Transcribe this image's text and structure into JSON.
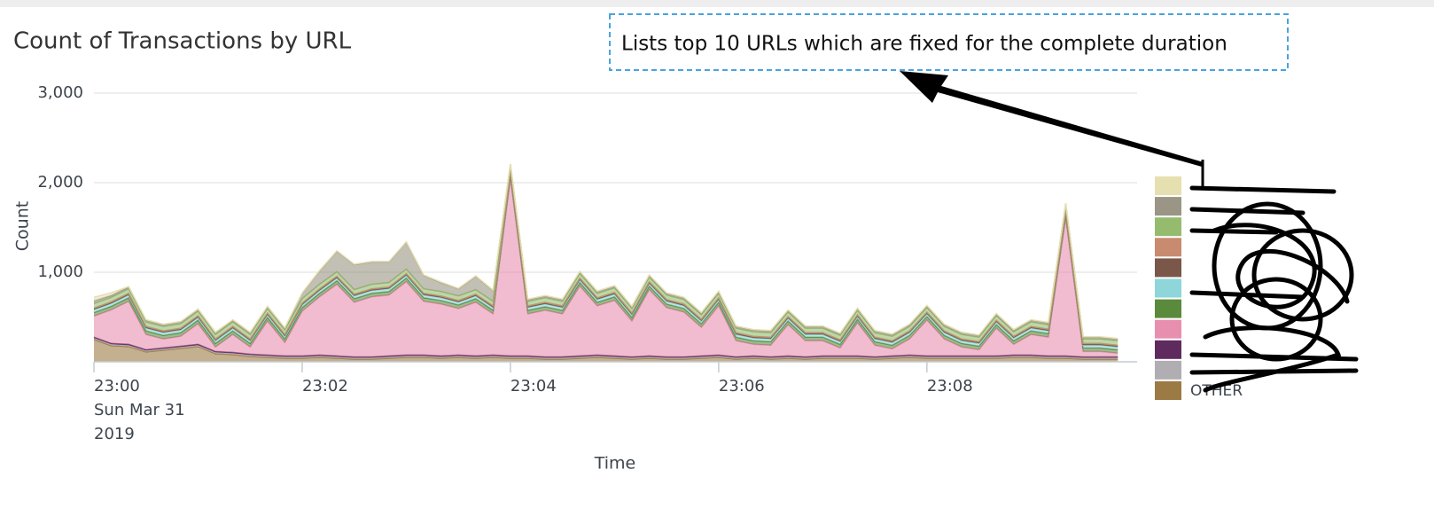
{
  "chart_data": {
    "type": "stacked-area",
    "title": "Count of Transactions by URL",
    "annotation": "Lists top 10 URLs which are fixed for the complete duration",
    "x_label": "Time",
    "y_label": "Count",
    "date_label": [
      "Sun Mar 31",
      "2019"
    ],
    "categories": [
      "23:00",
      null,
      null,
      null,
      null,
      null,
      null,
      null,
      null,
      null,
      null,
      null,
      "23:02",
      null,
      null,
      null,
      null,
      null,
      null,
      null,
      null,
      null,
      null,
      null,
      "23:04",
      null,
      null,
      null,
      null,
      null,
      null,
      null,
      null,
      null,
      null,
      null,
      "23:06",
      null,
      null,
      null,
      null,
      null,
      null,
      null,
      null,
      null,
      null,
      null,
      "23:08",
      null,
      null,
      null,
      null,
      null,
      null,
      null,
      null,
      null,
      null,
      null
    ],
    "ylim": [
      0,
      3000
    ],
    "yticks": [
      {
        "value": 1000,
        "label": "1,000"
      },
      {
        "value": 2000,
        "label": "2,000"
      },
      {
        "value": 3000,
        "label": "3,000"
      }
    ],
    "grid": true,
    "legend": "right",
    "series": [
      {
        "name": null,
        "color": "#e6dfb0",
        "values": [
          40,
          30,
          5,
          5,
          5,
          5,
          5,
          5,
          5,
          5,
          5,
          5,
          5,
          5,
          5,
          5,
          5,
          5,
          5,
          5,
          5,
          5,
          5,
          5,
          5,
          5,
          5,
          5,
          5,
          5,
          5,
          5,
          5,
          5,
          5,
          5,
          5,
          5,
          5,
          5,
          5,
          5,
          5,
          5,
          5,
          5,
          5,
          5,
          5,
          5,
          5,
          5,
          5,
          5,
          5,
          5,
          5,
          5,
          5,
          5
        ]
      },
      {
        "name": null,
        "color": "#9a9584",
        "values": [
          30,
          20,
          20,
          20,
          20,
          20,
          20,
          20,
          20,
          20,
          20,
          20,
          60,
          150,
          230,
          280,
          250,
          230,
          300,
          150,
          100,
          80,
          150,
          120,
          20,
          20,
          20,
          20,
          20,
          20,
          20,
          20,
          20,
          20,
          20,
          20,
          20,
          20,
          20,
          20,
          20,
          20,
          20,
          20,
          20,
          20,
          20,
          20,
          20,
          20,
          20,
          20,
          20,
          20,
          20,
          20,
          20,
          20,
          20,
          20
        ]
      },
      {
        "name": null,
        "color": "#95bb6f",
        "values": [
          50,
          50,
          50,
          50,
          50,
          50,
          50,
          50,
          50,
          50,
          50,
          50,
          50,
          50,
          50,
          50,
          50,
          50,
          50,
          50,
          50,
          50,
          50,
          50,
          50,
          50,
          50,
          50,
          50,
          50,
          50,
          50,
          50,
          50,
          50,
          50,
          50,
          50,
          50,
          50,
          50,
          50,
          50,
          50,
          50,
          50,
          50,
          50,
          50,
          50,
          50,
          50,
          50,
          50,
          50,
          50,
          50,
          50,
          50,
          50
        ]
      },
      {
        "name": null,
        "color": "#c88b6f",
        "values": [
          10,
          10,
          10,
          10,
          10,
          10,
          10,
          10,
          10,
          10,
          10,
          10,
          10,
          10,
          10,
          10,
          10,
          10,
          10,
          10,
          10,
          10,
          10,
          10,
          10,
          10,
          10,
          10,
          10,
          10,
          10,
          10,
          10,
          10,
          10,
          10,
          10,
          10,
          10,
          10,
          10,
          10,
          10,
          10,
          10,
          10,
          10,
          10,
          10,
          10,
          10,
          10,
          10,
          10,
          10,
          10,
          10,
          10,
          10,
          10
        ]
      },
      {
        "name": null,
        "color": "#7a5748",
        "values": [
          10,
          10,
          10,
          10,
          10,
          10,
          10,
          10,
          10,
          10,
          10,
          10,
          10,
          10,
          10,
          10,
          10,
          10,
          10,
          10,
          10,
          10,
          10,
          10,
          10,
          10,
          10,
          10,
          10,
          10,
          10,
          10,
          10,
          10,
          10,
          10,
          10,
          10,
          10,
          10,
          10,
          10,
          10,
          10,
          10,
          10,
          10,
          10,
          10,
          10,
          10,
          10,
          10,
          10,
          10,
          10,
          10,
          10,
          10,
          10
        ]
      },
      {
        "name": null,
        "color": "#8ed6da",
        "values": [
          30,
          30,
          30,
          30,
          30,
          30,
          30,
          30,
          30,
          30,
          30,
          30,
          30,
          30,
          30,
          30,
          30,
          30,
          30,
          30,
          30,
          30,
          30,
          30,
          30,
          30,
          30,
          30,
          30,
          30,
          30,
          30,
          30,
          30,
          30,
          30,
          30,
          30,
          30,
          30,
          30,
          30,
          30,
          30,
          30,
          30,
          30,
          30,
          30,
          30,
          30,
          30,
          30,
          30,
          30,
          30,
          30,
          30,
          30,
          30
        ]
      },
      {
        "name": null,
        "color": "#5a8a3c",
        "values": [
          40,
          40,
          40,
          40,
          40,
          40,
          40,
          40,
          40,
          40,
          40,
          40,
          40,
          40,
          40,
          40,
          40,
          40,
          40,
          40,
          40,
          40,
          40,
          40,
          40,
          40,
          40,
          40,
          40,
          40,
          40,
          40,
          40,
          40,
          40,
          40,
          40,
          40,
          40,
          40,
          40,
          40,
          40,
          40,
          40,
          40,
          40,
          40,
          40,
          40,
          40,
          40,
          40,
          40,
          40,
          40,
          40,
          40,
          40,
          40
        ]
      },
      {
        "name": null,
        "color": "#e88fb0",
        "values": [
          235,
          375,
          480,
          170,
          100,
          110,
          230,
          50,
          200,
          80,
          380,
          150,
          500,
          650,
          800,
          610,
          670,
          680,
          820,
          600,
          580,
          520,
          600,
          460,
          1980,
          470,
          520,
          480,
          780,
          550,
          620,
          400,
          740,
          550,
          500,
          320,
          550,
          180,
          130,
          130,
          350,
          180,
          170,
          90,
          370,
          130,
          80,
          180,
          400,
          190,
          100,
          70,
          310,
          120,
          230,
          210,
          1540,
          60,
          60,
          40
        ]
      },
      {
        "name": null,
        "color": "#5f2b5e",
        "values": [
          10,
          10,
          10,
          10,
          10,
          10,
          10,
          10,
          10,
          10,
          10,
          10,
          10,
          10,
          10,
          10,
          10,
          10,
          10,
          10,
          10,
          10,
          10,
          10,
          10,
          10,
          10,
          10,
          10,
          10,
          10,
          10,
          10,
          10,
          10,
          10,
          10,
          10,
          10,
          10,
          10,
          10,
          10,
          10,
          10,
          10,
          10,
          10,
          10,
          10,
          10,
          10,
          10,
          10,
          10,
          10,
          10,
          10,
          10,
          10
        ]
      },
      {
        "name": null,
        "color": "#b0adb3",
        "values": [
          15,
          15,
          15,
          15,
          15,
          15,
          15,
          15,
          15,
          15,
          15,
          15,
          15,
          15,
          15,
          15,
          15,
          15,
          15,
          15,
          15,
          15,
          15,
          15,
          15,
          15,
          15,
          15,
          15,
          15,
          15,
          15,
          15,
          15,
          15,
          15,
          15,
          15,
          15,
          15,
          15,
          15,
          15,
          15,
          15,
          15,
          15,
          15,
          15,
          15,
          15,
          15,
          15,
          15,
          15,
          15,
          15,
          15,
          15,
          15
        ]
      },
      {
        "name": "OTHER",
        "color": "#9c7a44",
        "values": [
          250,
          180,
          170,
          110,
          130,
          150,
          170,
          90,
          80,
          60,
          50,
          40,
          40,
          50,
          40,
          30,
          30,
          40,
          50,
          50,
          40,
          50,
          40,
          50,
          40,
          40,
          30,
          30,
          40,
          50,
          40,
          30,
          40,
          30,
          30,
          40,
          50,
          30,
          40,
          30,
          40,
          30,
          40,
          40,
          40,
          30,
          40,
          50,
          40,
          40,
          40,
          40,
          40,
          50,
          50,
          40,
          40,
          30,
          30,
          30
        ]
      }
    ]
  }
}
